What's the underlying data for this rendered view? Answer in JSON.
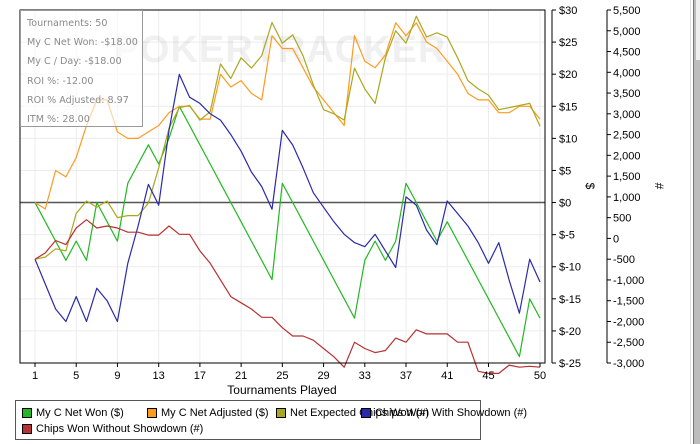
{
  "stats": {
    "lines": [
      "Tournaments: 50",
      "My C Net Won: -$18.00",
      "My C / Day: -$18.00",
      "ROI %: -12.00",
      "ROI % Adjusted: 8.97",
      "ITM %: 28.00"
    ]
  },
  "watermark": "POKERTRACKER",
  "chart_data": {
    "type": "line",
    "title": "",
    "xlabel": "Tournaments Played",
    "ylabel_left": "$",
    "ylabel_right": "#",
    "x_range": [
      1,
      50
    ],
    "x_ticks": [
      1,
      5,
      9,
      13,
      17,
      21,
      25,
      29,
      33,
      37,
      41,
      45,
      50
    ],
    "x_tick_labels": [
      "1",
      "5",
      "9",
      "13",
      "17",
      "21",
      "25",
      "29",
      "33",
      "37",
      "41",
      "45",
      "50"
    ],
    "y_left_range": [
      -25,
      30
    ],
    "y_left_ticks": [
      30,
      25,
      20,
      15,
      10,
      5,
      0,
      -5,
      -10,
      -15,
      -20,
      -25
    ],
    "y_left_tick_labels": [
      "$30",
      "$25",
      "$20",
      "$15",
      "$10",
      "$5",
      "$0",
      "$-5",
      "$-10",
      "$-15",
      "$-20",
      "$-25"
    ],
    "y_right_range": [
      -3000,
      5500
    ],
    "y_right_ticks": [
      5500,
      5000,
      4500,
      4000,
      3500,
      3000,
      2500,
      2000,
      1500,
      1000,
      500,
      0,
      -500,
      -1000,
      -1500,
      -2000,
      -2500,
      -3000
    ],
    "y_right_tick_labels": [
      "5,500",
      "5,000",
      "4,500",
      "4,000",
      "3,500",
      "3,000",
      "2,500",
      "2,000",
      "1,500",
      "1,000",
      "500",
      "0",
      "-500",
      "-1,000",
      "-1,500",
      "-2,000",
      "-2,500",
      "-3,000"
    ],
    "grid": true,
    "legend_position": "bottom",
    "x": [
      1,
      2,
      3,
      4,
      5,
      6,
      7,
      8,
      9,
      10,
      11,
      12,
      13,
      14,
      15,
      16,
      17,
      18,
      19,
      20,
      21,
      22,
      23,
      24,
      25,
      26,
      27,
      28,
      29,
      30,
      31,
      32,
      33,
      34,
      35,
      36,
      37,
      38,
      39,
      40,
      41,
      42,
      43,
      44,
      45,
      46,
      47,
      48,
      49,
      50
    ],
    "series": [
      {
        "name": "My C Net Won ($)",
        "axis": "left",
        "color": "#22b822",
        "values": [
          0,
          -3,
          -6,
          -9,
          -6,
          -9,
          0,
          -3,
          -6,
          3,
          6,
          9,
          6,
          10,
          15,
          12,
          9,
          6,
          3,
          0,
          -3,
          -6,
          -9,
          -12,
          3,
          0,
          -3,
          -6,
          -9,
          -12,
          -15,
          -18,
          -9,
          -6,
          -9,
          -6,
          3,
          0,
          -3,
          -6,
          -3,
          -6,
          -9,
          -12,
          -15,
          -18,
          -21,
          -24,
          -15,
          -18
        ]
      },
      {
        "name": "My C Net Adjusted ($)",
        "axis": "left",
        "color": "#ff9a1f",
        "values": [
          0,
          -1,
          5,
          4,
          7,
          12,
          16,
          16,
          11,
          10,
          10,
          11,
          12,
          14,
          15,
          15,
          13,
          13,
          20,
          18,
          19,
          17,
          16,
          26,
          24,
          24,
          21,
          18,
          16,
          14,
          12,
          26,
          22,
          21,
          23,
          28,
          26,
          28,
          25,
          24,
          22,
          20,
          17,
          16,
          16,
          14,
          14,
          15,
          15,
          13
        ]
      },
      {
        "name": "Net Expected Chips Won (#)",
        "axis": "right",
        "color": "#a8a820",
        "values": [
          -500,
          -450,
          -250,
          -300,
          600,
          900,
          750,
          900,
          500,
          550,
          550,
          850,
          1700,
          2650,
          3150,
          3200,
          2850,
          3050,
          4200,
          3850,
          4350,
          4100,
          4400,
          5200,
          4700,
          4900,
          4400,
          3700,
          3100,
          3000,
          2850,
          4100,
          3600,
          3250,
          4350,
          5000,
          4700,
          5350,
          4850,
          4950,
          4850,
          4350,
          3800,
          3600,
          3450,
          3100,
          3150,
          3200,
          3250,
          2700
        ]
      },
      {
        "name": "Chips Won With Showdown (#)",
        "axis": "right",
        "color": "#2a2aaa",
        "values": [
          -500,
          -1100,
          -1700,
          -2000,
          -1400,
          -2000,
          -1200,
          -1500,
          -2000,
          -600,
          300,
          1300,
          800,
          2600,
          3950,
          3400,
          3250,
          3000,
          2850,
          2500,
          2100,
          1600,
          1250,
          700,
          2600,
          2250,
          1700,
          1100,
          750,
          400,
          100,
          -100,
          -200,
          100,
          -300,
          -700,
          1000,
          800,
          200,
          -150,
          900,
          600,
          300,
          -100,
          -600,
          -100,
          -1000,
          -1800,
          -500,
          -1050
        ]
      },
      {
        "name": "Chips Won Without Showdown (#)",
        "axis": "right",
        "color": "#b83030",
        "values": [
          -500,
          -350,
          -50,
          -150,
          250,
          450,
          250,
          300,
          250,
          150,
          150,
          80,
          80,
          300,
          100,
          100,
          -300,
          -600,
          -1000,
          -1400,
          -1550,
          -1700,
          -1900,
          -1900,
          -2150,
          -2350,
          -2350,
          -2450,
          -2650,
          -2850,
          -3100,
          -2500,
          -2650,
          -2750,
          -2700,
          -2400,
          -2500,
          -2200,
          -2300,
          -2300,
          -2300,
          -2500,
          -2500,
          -3200,
          -3250,
          -3250,
          -3050,
          -3100,
          -3080,
          -3100
        ]
      }
    ]
  },
  "legend": {
    "items": [
      {
        "label": "My C Net Won ($)",
        "color": "#22b822"
      },
      {
        "label": "My C Net Adjusted ($)",
        "color": "#ff9a1f"
      },
      {
        "label": "Net Expected Chips Won (#)",
        "color": "#a8a820"
      },
      {
        "label": "Chips Won With Showdown (#)",
        "color": "#2a2aaa"
      },
      {
        "label": "Chips Won Without Showdown (#)",
        "color": "#b83030"
      }
    ]
  }
}
